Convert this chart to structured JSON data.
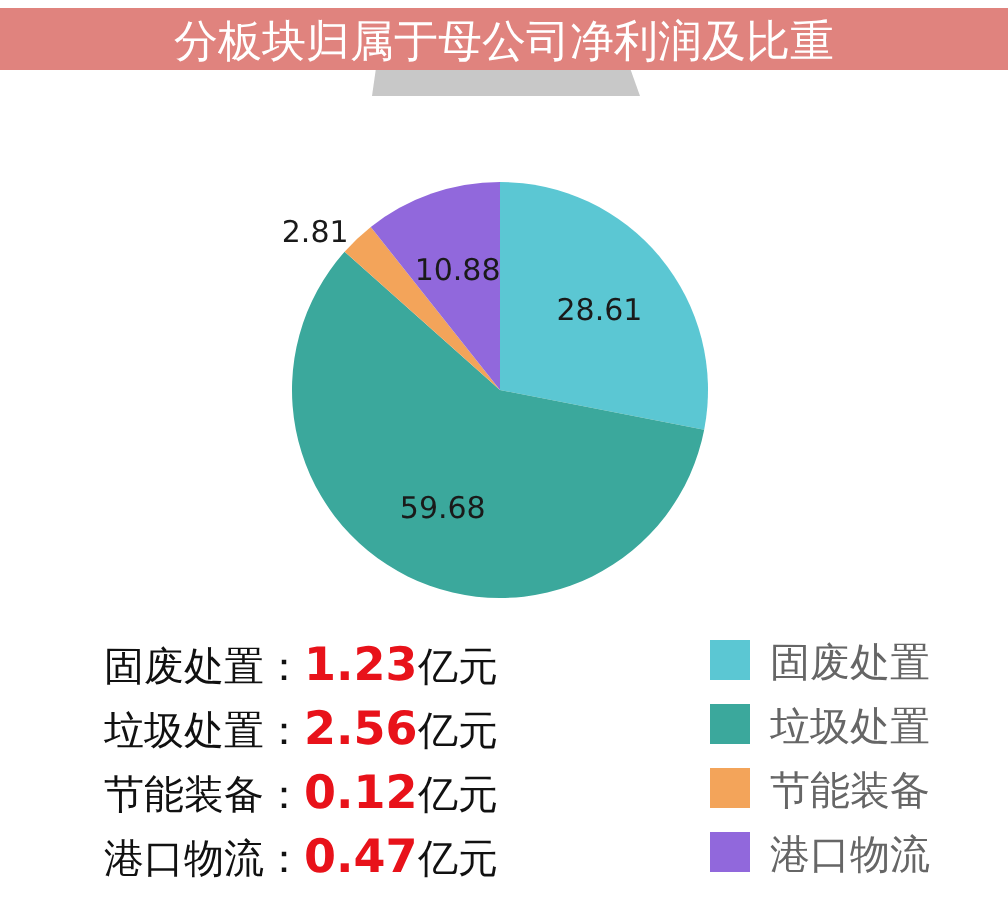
{
  "chart_data": {
    "type": "pie",
    "title": "分板块归属于母公司净利润及比重",
    "categories": [
      "固废处置",
      "垃圾处置",
      "节能装备",
      "港口物流"
    ],
    "values": [
      28.61,
      59.68,
      2.81,
      10.88
    ],
    "colors": [
      "#5bc7d3",
      "#3ba89c",
      "#f3a45a",
      "#9168dc"
    ],
    "data_labels": true,
    "legend": "bottom right",
    "annotations": [
      "固废处置：1.23亿元",
      "垃圾处置：2.56亿元",
      "节能装备：0.12亿元",
      "港口物流：0.47亿元"
    ]
  }
}
